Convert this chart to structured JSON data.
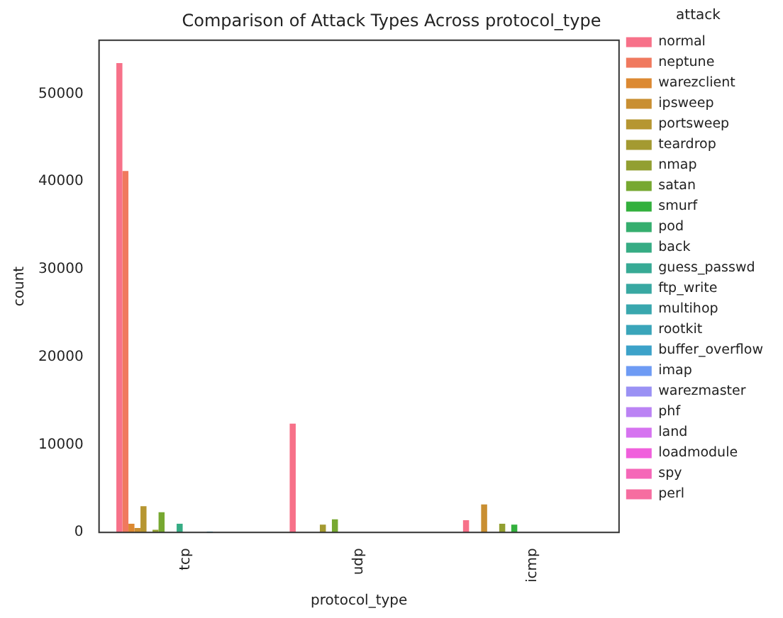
{
  "chart_data": {
    "type": "bar",
    "title": "Comparison of Attack Types Across protocol_type",
    "xlabel": "protocol_type",
    "ylabel": "count",
    "legend_title": "attack",
    "categories": [
      "tcp",
      "udp",
      "icmp"
    ],
    "series": [
      {
        "name": "normal",
        "color": "#f77189",
        "values": [
          53500,
          12400,
          1400
        ]
      },
      {
        "name": "neptune",
        "color": "#f0795e",
        "values": [
          41200,
          0,
          0
        ]
      },
      {
        "name": "warezclient",
        "color": "#dc8932",
        "values": [
          1000,
          0,
          0
        ]
      },
      {
        "name": "ipsweep",
        "color": "#c98f32",
        "values": [
          500,
          0,
          3200
        ]
      },
      {
        "name": "portsweep",
        "color": "#b69631",
        "values": [
          3000,
          0,
          0
        ]
      },
      {
        "name": "teardrop",
        "color": "#a49a31",
        "values": [
          0,
          900,
          0
        ]
      },
      {
        "name": "nmap",
        "color": "#929f31",
        "values": [
          300,
          null,
          1000
        ]
      },
      {
        "name": "satan",
        "color": "#77a831",
        "values": [
          2300,
          1500,
          0
        ]
      },
      {
        "name": "smurf",
        "color": "#33b03d",
        "values": [
          0,
          0,
          900
        ]
      },
      {
        "name": "pod",
        "color": "#35ae6e",
        "values": [
          0,
          0,
          null
        ]
      },
      {
        "name": "back",
        "color": "#36ac84",
        "values": [
          1000,
          0,
          0
        ]
      },
      {
        "name": "guess_passwd",
        "color": "#37aa95",
        "values": [
          null,
          0,
          0
        ]
      },
      {
        "name": "ftp_write",
        "color": "#38a8a2",
        "values": [
          0,
          0,
          0
        ]
      },
      {
        "name": "multihop",
        "color": "#39a7ae",
        "values": [
          0,
          0,
          0
        ]
      },
      {
        "name": "rootkit",
        "color": "#3aa5ba",
        "values": [
          0,
          0,
          0
        ]
      },
      {
        "name": "buffer_overflow",
        "color": "#3ca2c9",
        "values": [
          100,
          0,
          0
        ]
      },
      {
        "name": "imap",
        "color": "#6e9bf4",
        "values": [
          0,
          0,
          0
        ]
      },
      {
        "name": "warezmaster",
        "color": "#9a91f4",
        "values": [
          0,
          0,
          0
        ]
      },
      {
        "name": "phf",
        "color": "#bb83f4",
        "values": [
          0,
          0,
          0
        ]
      },
      {
        "name": "land",
        "color": "#d673f0",
        "values": [
          0,
          0,
          0
        ]
      },
      {
        "name": "loadmodule",
        "color": "#f05fdc",
        "values": [
          0,
          0,
          0
        ]
      },
      {
        "name": "spy",
        "color": "#f567b8",
        "values": [
          0,
          0,
          0
        ]
      },
      {
        "name": "perl",
        "color": "#f66da0",
        "values": [
          0,
          0,
          0
        ]
      }
    ],
    "ylim": [
      0,
      56100
    ],
    "yticks": [
      0,
      10000,
      20000,
      30000,
      40000,
      50000
    ],
    "grid": false,
    "legend": "top right"
  }
}
